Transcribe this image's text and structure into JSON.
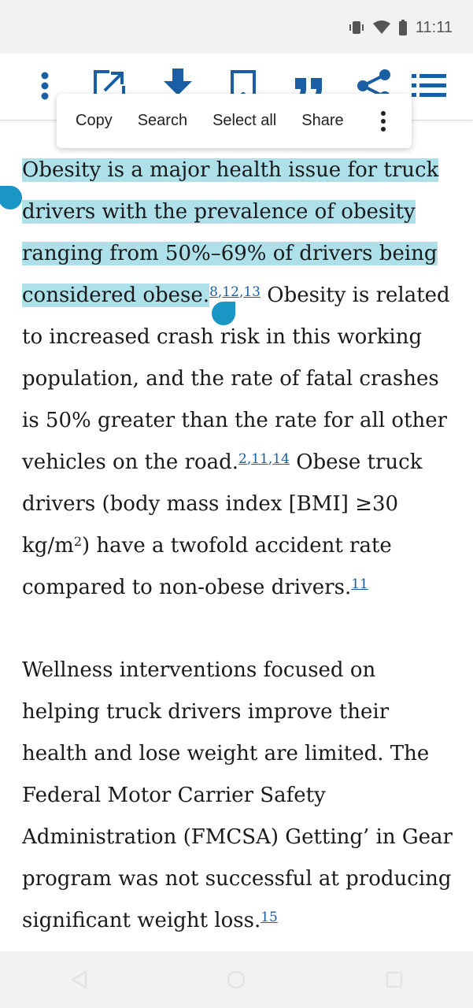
{
  "status_bar": {
    "time": "11:11",
    "icons": [
      "vibrate-icon",
      "wifi-icon",
      "battery-icon"
    ]
  },
  "toolbar": {
    "icons": [
      "more-vert-icon",
      "open-external-icon",
      "download-icon",
      "bookmark-icon",
      "quote-icon",
      "share-icon",
      "list-icon"
    ],
    "accent_color": "#1a5ea3"
  },
  "context_menu": {
    "items": [
      "Copy",
      "Search",
      "Select all",
      "Share"
    ],
    "more_icon": "more-vert-icon"
  },
  "article": {
    "p1": {
      "sel1": "Obesity is a major health issue for truck drivers with the prevalence of obesity ranging from 50%–69% of drivers being considered obese.",
      "cite1a": "8",
      "comma": ",",
      "cite1b": "12",
      "cite1c": "13",
      "t1": " Obesity is related to increased crash risk in this working population, and the rate of fatal crashes is 50% greater than the rate for all other vehicles on the road.",
      "cite2a": "2",
      "cite2b": "11",
      "cite2c": "14",
      "t2": " Obese truck drivers (body mass index [BMI] ≥30 kg/m",
      "sup": "2",
      "t3": ") have a twofold accident rate compared to non-obese drivers.",
      "cite3": "11"
    },
    "p2": {
      "t1": "Wellness interventions focused on helping truck drivers improve their health and lose weight are limited. The Federal Motor Carrier Safety Administration (FMCSA) Getting’ in Gear program was not successful at producing significant weight loss.",
      "cite": "15"
    },
    "highlight_color": "#aee0ea",
    "handle_color": "#1a96c5"
  },
  "nav_bar": {
    "icons": [
      "back-icon",
      "home-icon",
      "recents-icon"
    ]
  }
}
